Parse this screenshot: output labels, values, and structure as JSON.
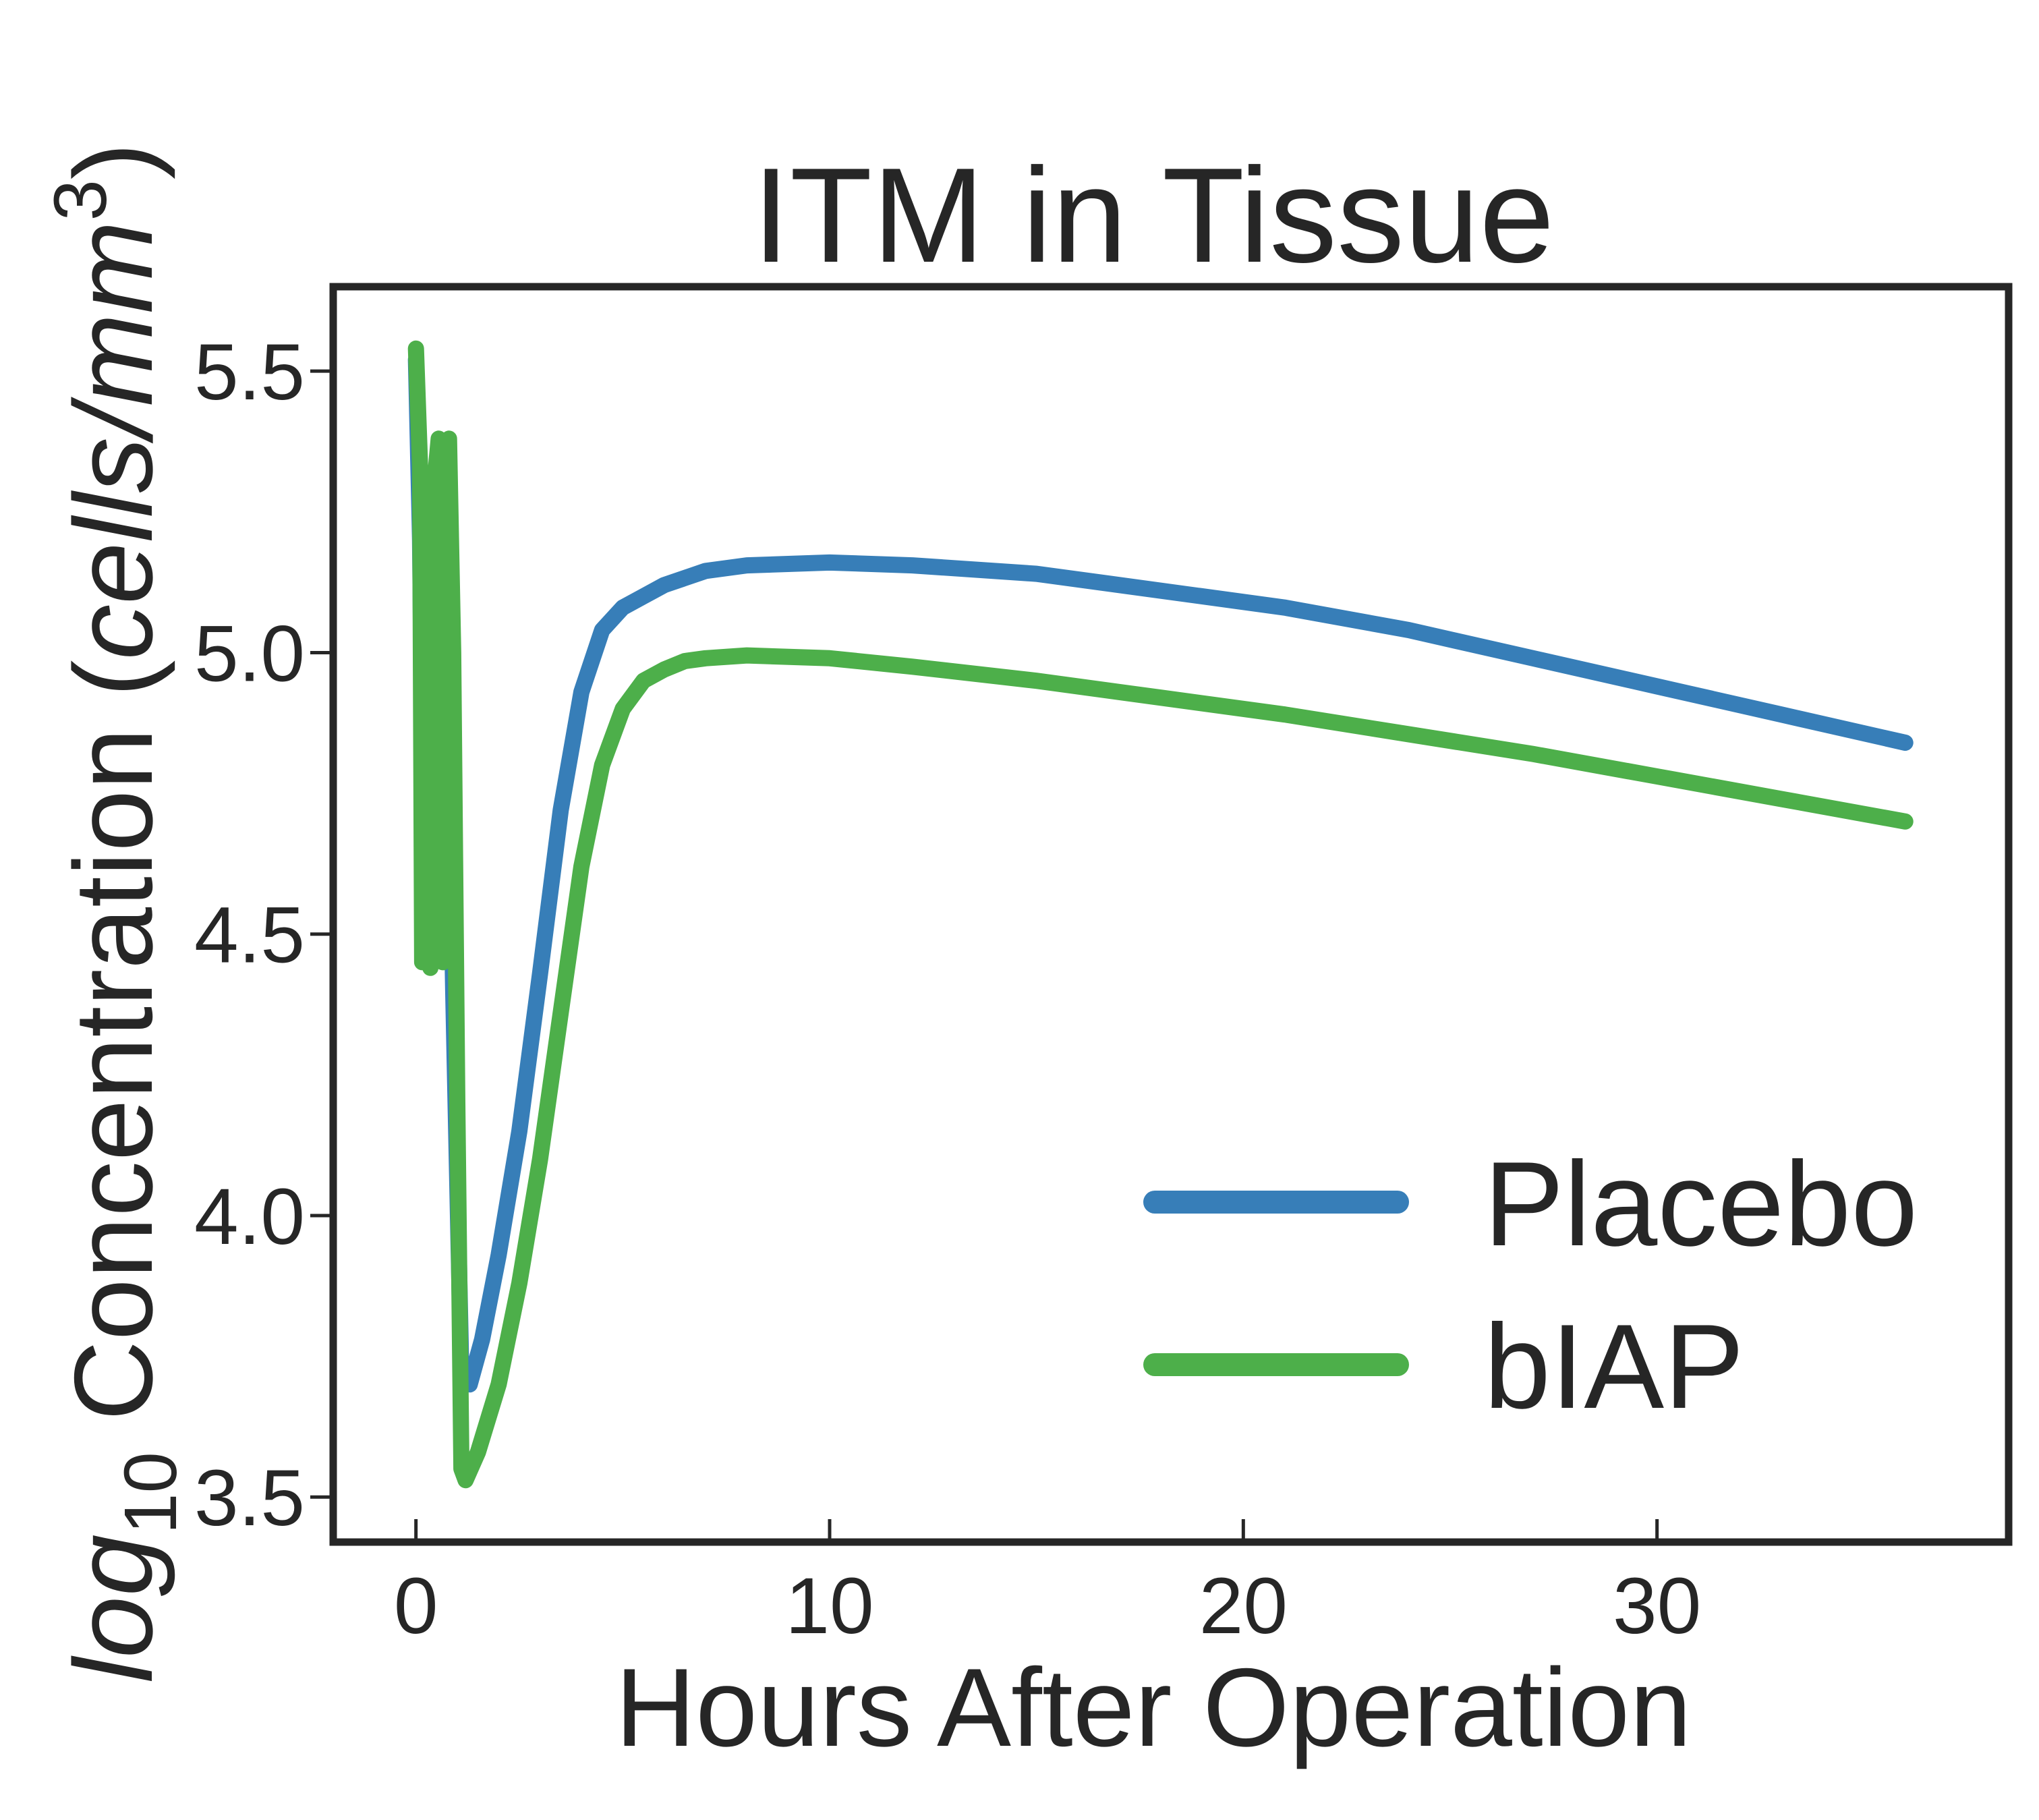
{
  "chart_data": {
    "type": "line",
    "title": "ITM in Tissue",
    "xlabel": "Hours After Operation",
    "ylabel": {
      "prefix": "log",
      "subscript": "10",
      "text": " Concentration (",
      "unit": "cells/mm",
      "superscript": "3",
      "suffix": ")"
    },
    "xlim": [
      -2,
      38.5
    ],
    "ylim": [
      3.42,
      5.65
    ],
    "xticks": [
      0,
      10,
      20,
      30
    ],
    "xtick_labels": [
      "0",
      "10",
      "20",
      "30"
    ],
    "yticks": [
      3.5,
      4.0,
      4.5,
      5.0,
      5.5
    ],
    "ytick_labels": [
      "3.5",
      "4.0",
      "4.5",
      "5.0",
      "5.5"
    ],
    "grid": false,
    "legend_position": "lower-right",
    "series": [
      {
        "name": "Placebo",
        "color": "#377eb8",
        "x": [
          0,
          0.1,
          0.2,
          0.3,
          0.4,
          0.5,
          0.55,
          0.65,
          0.75,
          0.9,
          1.1,
          1.3,
          1.6,
          2.0,
          2.5,
          3.0,
          3.5,
          4.0,
          4.5,
          5.0,
          5.5,
          6.0,
          7.0,
          8.0,
          10.0,
          12.0,
          15.0,
          18.0,
          21.0,
          24.0,
          27.0,
          30.0,
          33.0,
          36.0
        ],
        "y": [
          5.52,
          5.2,
          4.5,
          4.8,
          4.46,
          5.1,
          5.37,
          5.37,
          5.0,
          4.4,
          3.71,
          3.7,
          3.78,
          3.93,
          4.15,
          4.43,
          4.72,
          4.93,
          5.04,
          5.08,
          5.1,
          5.12,
          5.145,
          5.155,
          5.16,
          5.155,
          5.14,
          5.11,
          5.08,
          5.04,
          4.99,
          4.94,
          4.89,
          4.84
        ]
      },
      {
        "name": "bIAP",
        "color": "#4daf4a",
        "x": [
          0,
          0.1,
          0.15,
          0.25,
          0.35,
          0.45,
          0.55,
          0.6,
          0.65,
          0.7,
          0.8,
          0.9,
          1.0,
          1.1,
          1.2,
          1.5,
          2.0,
          2.5,
          3.0,
          3.5,
          4.0,
          4.5,
          5.0,
          5.5,
          6.0,
          6.5,
          7.0,
          8.0,
          10.0,
          12.0,
          15.0,
          18.0,
          21.0,
          24.0,
          27.0,
          30.0,
          33.0,
          36.0
        ],
        "y": [
          5.54,
          5.33,
          4.45,
          5.3,
          4.44,
          5.3,
          5.38,
          5.0,
          4.45,
          5.3,
          5.38,
          5.0,
          4.2,
          3.55,
          3.53,
          3.58,
          3.7,
          3.88,
          4.1,
          4.36,
          4.62,
          4.8,
          4.9,
          4.95,
          4.97,
          4.985,
          4.99,
          4.995,
          4.99,
          4.975,
          4.95,
          4.92,
          4.89,
          4.855,
          4.82,
          4.78,
          4.74,
          4.7
        ]
      }
    ]
  }
}
